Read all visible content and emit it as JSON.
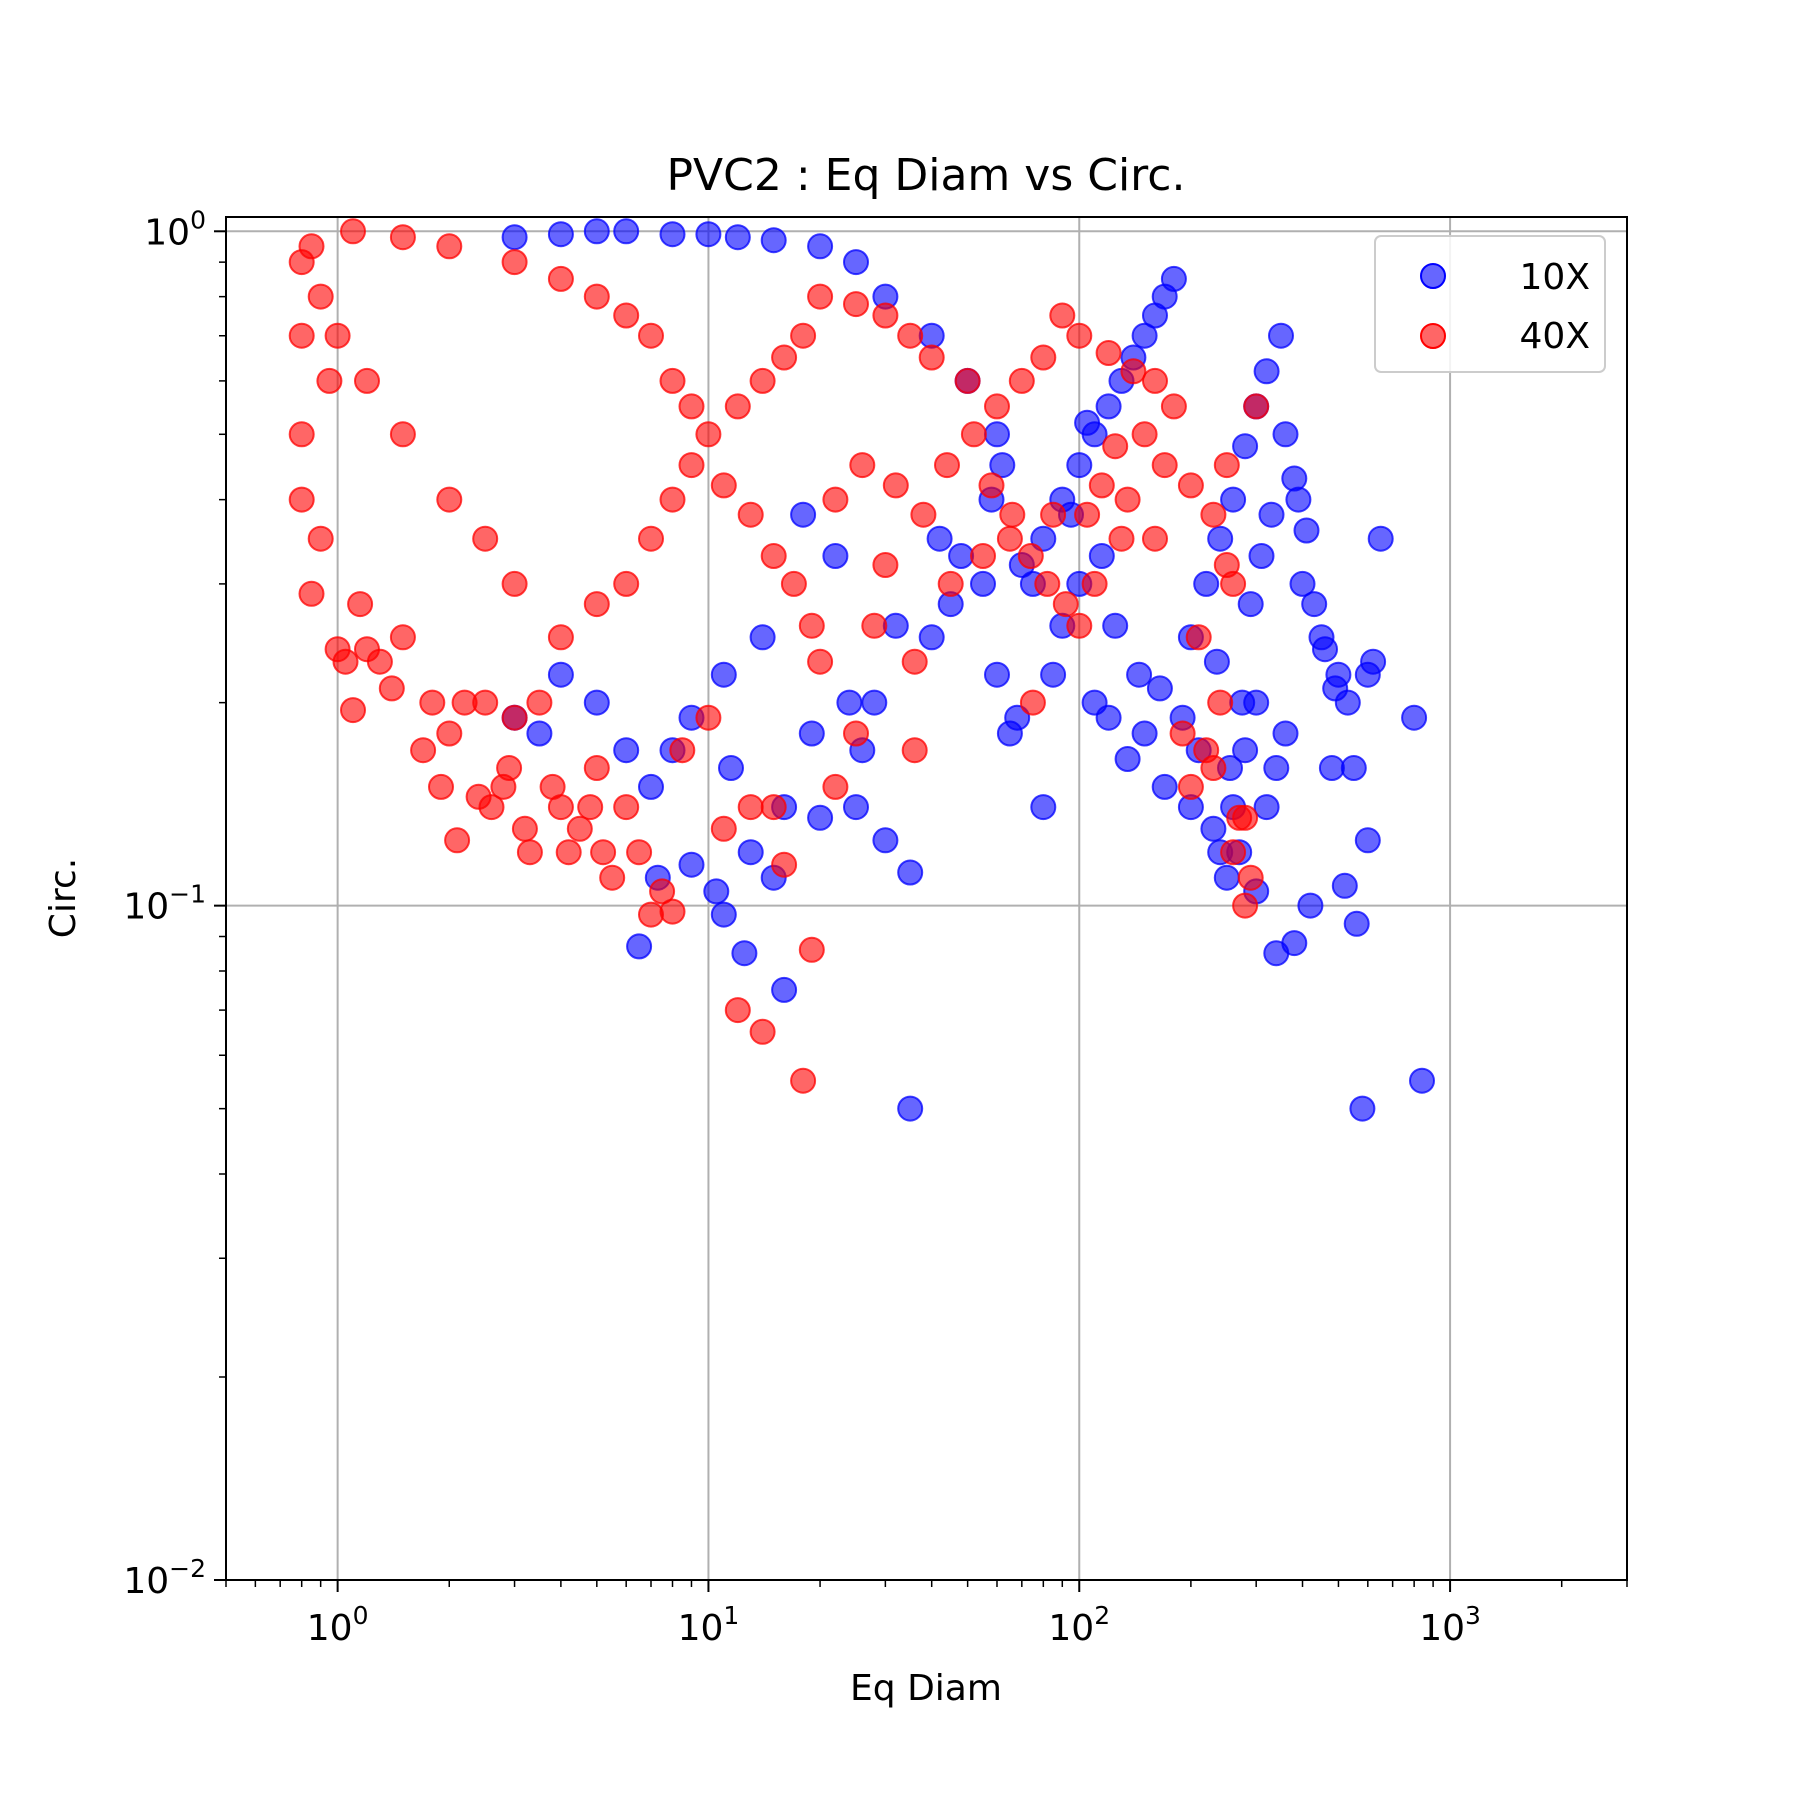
{
  "chart_data": {
    "type": "scatter",
    "title": "PVC2 : Eq Diam vs Circ.",
    "xlabel": "Eq Diam",
    "ylabel": "Circ.",
    "xscale": "log",
    "yscale": "log",
    "xlim": [
      0.5,
      3000
    ],
    "ylim": [
      0.01,
      1.05
    ],
    "grid": true,
    "legend_position": "top-right",
    "x_ticks": [
      {
        "value": 1,
        "base": "10",
        "exp": "0"
      },
      {
        "value": 10,
        "base": "10",
        "exp": "1"
      },
      {
        "value": 100,
        "base": "10",
        "exp": "2"
      },
      {
        "value": 1000,
        "base": "10",
        "exp": "3"
      }
    ],
    "y_ticks": [
      {
        "value": 0.01,
        "base": "10",
        "exp": "−2"
      },
      {
        "value": 0.1,
        "base": "10",
        "exp": "−1"
      },
      {
        "value": 1,
        "base": "10",
        "exp": "0"
      }
    ],
    "series": [
      {
        "name": "10X",
        "color": "#0000ff",
        "points": [
          [
            6.5,
            0.087
          ],
          [
            7.3,
            0.11
          ],
          [
            9,
            0.115
          ],
          [
            10.5,
            0.105
          ],
          [
            11,
            0.097
          ],
          [
            12.5,
            0.085
          ],
          [
            13,
            0.12
          ],
          [
            15,
            0.11
          ],
          [
            16,
            0.075
          ],
          [
            20,
            0.135
          ],
          [
            25,
            0.14
          ],
          [
            30,
            0.125
          ],
          [
            35,
            0.05
          ],
          [
            35,
            0.112
          ],
          [
            40,
            0.25
          ],
          [
            45,
            0.28
          ],
          [
            55,
            0.3
          ],
          [
            60,
            0.22
          ],
          [
            65,
            0.18
          ],
          [
            68,
            0.19
          ],
          [
            80,
            0.14
          ],
          [
            90,
            0.26
          ],
          [
            100,
            0.3
          ],
          [
            110,
            0.2
          ],
          [
            120,
            0.19
          ],
          [
            135,
            0.165
          ],
          [
            150,
            0.18
          ],
          [
            170,
            0.15
          ],
          [
            200,
            0.14
          ],
          [
            230,
            0.13
          ],
          [
            250,
            0.11
          ],
          [
            270,
            0.12
          ],
          [
            300,
            0.105
          ],
          [
            340,
            0.085
          ],
          [
            380,
            0.088
          ],
          [
            420,
            0.1
          ],
          [
            480,
            0.16
          ],
          [
            520,
            0.107
          ],
          [
            560,
            0.094
          ],
          [
            580,
            0.05
          ],
          [
            620,
            0.23
          ],
          [
            650,
            0.35
          ],
          [
            800,
            0.19
          ],
          [
            840,
            0.055
          ],
          [
            600,
            0.125
          ],
          [
            500,
            0.22
          ],
          [
            450,
            0.25
          ],
          [
            400,
            0.3
          ],
          [
            380,
            0.43
          ],
          [
            350,
            0.7
          ],
          [
            320,
            0.62
          ],
          [
            300,
            0.55
          ],
          [
            280,
            0.48
          ],
          [
            260,
            0.4
          ],
          [
            240,
            0.35
          ],
          [
            220,
            0.3
          ],
          [
            200,
            0.25
          ],
          [
            180,
            0.85
          ],
          [
            170,
            0.8
          ],
          [
            160,
            0.75
          ],
          [
            150,
            0.7
          ],
          [
            140,
            0.65
          ],
          [
            130,
            0.6
          ],
          [
            120,
            0.55
          ],
          [
            110,
            0.5
          ],
          [
            100,
            0.45
          ],
          [
            90,
            0.4
          ],
          [
            80,
            0.35
          ],
          [
            70,
            0.32
          ],
          [
            60,
            0.5
          ],
          [
            50,
            0.6
          ],
          [
            40,
            0.7
          ],
          [
            30,
            0.8
          ],
          [
            25,
            0.9
          ],
          [
            20,
            0.95
          ],
          [
            15,
            0.97
          ],
          [
            12,
            0.98
          ],
          [
            10,
            0.99
          ],
          [
            8,
            0.99
          ],
          [
            6,
            1.0
          ],
          [
            5,
            1.0
          ],
          [
            4,
            0.99
          ],
          [
            3,
            0.98
          ],
          [
            18,
            0.38
          ],
          [
            22,
            0.33
          ],
          [
            28,
            0.2
          ],
          [
            32,
            0.26
          ],
          [
            14,
            0.25
          ],
          [
            11,
            0.22
          ],
          [
            9,
            0.19
          ],
          [
            8,
            0.17
          ],
          [
            7,
            0.15
          ],
          [
            6,
            0.17
          ],
          [
            5,
            0.2
          ],
          [
            4,
            0.22
          ],
          [
            3.5,
            0.18
          ],
          [
            3,
            0.19
          ],
          [
            11.5,
            0.16
          ],
          [
            16,
            0.14
          ],
          [
            19,
            0.18
          ],
          [
            24,
            0.2
          ],
          [
            26,
            0.17
          ],
          [
            42,
            0.35
          ],
          [
            48,
            0.33
          ],
          [
            58,
            0.4
          ],
          [
            62,
            0.45
          ],
          [
            75,
            0.3
          ],
          [
            85,
            0.22
          ],
          [
            95,
            0.38
          ],
          [
            105,
            0.52
          ],
          [
            115,
            0.33
          ],
          [
            125,
            0.26
          ],
          [
            145,
            0.22
          ],
          [
            165,
            0.21
          ],
          [
            190,
            0.19
          ],
          [
            210,
            0.17
          ],
          [
            235,
            0.23
          ],
          [
            255,
            0.16
          ],
          [
            275,
            0.2
          ],
          [
            290,
            0.28
          ],
          [
            310,
            0.33
          ],
          [
            330,
            0.38
          ],
          [
            360,
            0.5
          ],
          [
            390,
            0.4
          ],
          [
            410,
            0.36
          ],
          [
            430,
            0.28
          ],
          [
            460,
            0.24
          ],
          [
            490,
            0.21
          ],
          [
            530,
            0.2
          ],
          [
            550,
            0.16
          ],
          [
            600,
            0.22
          ],
          [
            360,
            0.18
          ],
          [
            340,
            0.16
          ],
          [
            320,
            0.14
          ],
          [
            300,
            0.2
          ],
          [
            280,
            0.17
          ],
          [
            260,
            0.14
          ],
          [
            240,
            0.12
          ]
        ]
      },
      {
        "name": "40X",
        "color": "#ff0000",
        "points": [
          [
            0.8,
            0.9
          ],
          [
            0.8,
            0.7
          ],
          [
            0.8,
            0.5
          ],
          [
            0.8,
            0.4
          ],
          [
            0.85,
            0.29
          ],
          [
            0.9,
            0.35
          ],
          [
            0.95,
            0.6
          ],
          [
            1,
            0.24
          ],
          [
            1.05,
            0.23
          ],
          [
            1.1,
            0.195
          ],
          [
            1.15,
            0.28
          ],
          [
            1.2,
            0.24
          ],
          [
            1.3,
            0.23
          ],
          [
            1.4,
            0.21
          ],
          [
            1.5,
            0.25
          ],
          [
            1.7,
            0.17
          ],
          [
            1.8,
            0.2
          ],
          [
            1.9,
            0.15
          ],
          [
            2.0,
            0.18
          ],
          [
            2.1,
            0.125
          ],
          [
            2.2,
            0.2
          ],
          [
            2.4,
            0.145
          ],
          [
            2.5,
            0.2
          ],
          [
            2.6,
            0.14
          ],
          [
            2.8,
            0.15
          ],
          [
            2.9,
            0.16
          ],
          [
            3,
            0.19
          ],
          [
            3.2,
            0.13
          ],
          [
            3.3,
            0.12
          ],
          [
            3.5,
            0.2
          ],
          [
            3.8,
            0.15
          ],
          [
            4,
            0.14
          ],
          [
            4.2,
            0.12
          ],
          [
            4.5,
            0.13
          ],
          [
            4.8,
            0.14
          ],
          [
            5,
            0.16
          ],
          [
            5.2,
            0.12
          ],
          [
            5.5,
            0.11
          ],
          [
            6,
            0.14
          ],
          [
            6.5,
            0.12
          ],
          [
            7,
            0.097
          ],
          [
            7.5,
            0.105
          ],
          [
            8,
            0.098
          ],
          [
            8.5,
            0.17
          ],
          [
            10,
            0.19
          ],
          [
            11,
            0.13
          ],
          [
            12,
            0.07
          ],
          [
            13,
            0.14
          ],
          [
            14,
            0.065
          ],
          [
            15,
            0.14
          ],
          [
            16,
            0.115
          ],
          [
            18,
            0.055
          ],
          [
            19,
            0.086
          ],
          [
            20,
            0.23
          ],
          [
            22,
            0.15
          ],
          [
            25,
            0.18
          ],
          [
            28,
            0.26
          ],
          [
            30,
            0.32
          ],
          [
            36,
            0.23
          ],
          [
            36,
            0.17
          ],
          [
            45,
            0.3
          ],
          [
            55,
            0.33
          ],
          [
            65,
            0.35
          ],
          [
            75,
            0.2
          ],
          [
            85,
            0.38
          ],
          [
            100,
            0.26
          ],
          [
            110,
            0.3
          ],
          [
            130,
            0.35
          ],
          [
            150,
            0.5
          ],
          [
            170,
            0.45
          ],
          [
            190,
            0.18
          ],
          [
            200,
            0.15
          ],
          [
            220,
            0.17
          ],
          [
            240,
            0.2
          ],
          [
            250,
            0.45
          ],
          [
            260,
            0.3
          ],
          [
            270,
            0.135
          ],
          [
            280,
            0.1
          ],
          [
            290,
            0.11
          ],
          [
            300,
            0.55
          ],
          [
            280,
            0.135
          ],
          [
            260,
            0.12
          ],
          [
            230,
            0.16
          ],
          [
            210,
            0.25
          ],
          [
            180,
            0.55
          ],
          [
            160,
            0.6
          ],
          [
            140,
            0.62
          ],
          [
            120,
            0.66
          ],
          [
            100,
            0.7
          ],
          [
            90,
            0.75
          ],
          [
            80,
            0.65
          ],
          [
            70,
            0.6
          ],
          [
            60,
            0.55
          ],
          [
            50,
            0.6
          ],
          [
            40,
            0.65
          ],
          [
            35,
            0.7
          ],
          [
            30,
            0.75
          ],
          [
            25,
            0.78
          ],
          [
            20,
            0.8
          ],
          [
            18,
            0.7
          ],
          [
            16,
            0.65
          ],
          [
            14,
            0.6
          ],
          [
            12,
            0.55
          ],
          [
            10,
            0.5
          ],
          [
            9,
            0.45
          ],
          [
            8,
            0.4
          ],
          [
            7,
            0.35
          ],
          [
            6,
            0.3
          ],
          [
            5,
            0.28
          ],
          [
            4,
            0.25
          ],
          [
            3,
            0.3
          ],
          [
            2.5,
            0.35
          ],
          [
            2,
            0.4
          ],
          [
            1.5,
            0.5
          ],
          [
            1.2,
            0.6
          ],
          [
            1,
            0.7
          ],
          [
            0.9,
            0.8
          ],
          [
            0.85,
            0.95
          ],
          [
            1.1,
            1.0
          ],
          [
            1.5,
            0.98
          ],
          [
            2,
            0.95
          ],
          [
            3,
            0.9
          ],
          [
            4,
            0.85
          ],
          [
            5,
            0.8
          ],
          [
            6,
            0.75
          ],
          [
            7,
            0.7
          ],
          [
            8,
            0.6
          ],
          [
            9,
            0.55
          ],
          [
            11,
            0.42
          ],
          [
            13,
            0.38
          ],
          [
            15,
            0.33
          ],
          [
            17,
            0.3
          ],
          [
            19,
            0.26
          ],
          [
            22,
            0.4
          ],
          [
            26,
            0.45
          ],
          [
            32,
            0.42
          ],
          [
            38,
            0.38
          ],
          [
            44,
            0.45
          ],
          [
            52,
            0.5
          ],
          [
            58,
            0.42
          ],
          [
            66,
            0.38
          ],
          [
            74,
            0.33
          ],
          [
            82,
            0.3
          ],
          [
            92,
            0.28
          ],
          [
            105,
            0.38
          ],
          [
            115,
            0.42
          ],
          [
            125,
            0.48
          ],
          [
            135,
            0.4
          ],
          [
            160,
            0.35
          ],
          [
            200,
            0.42
          ],
          [
            230,
            0.38
          ],
          [
            250,
            0.32
          ]
        ]
      }
    ]
  }
}
